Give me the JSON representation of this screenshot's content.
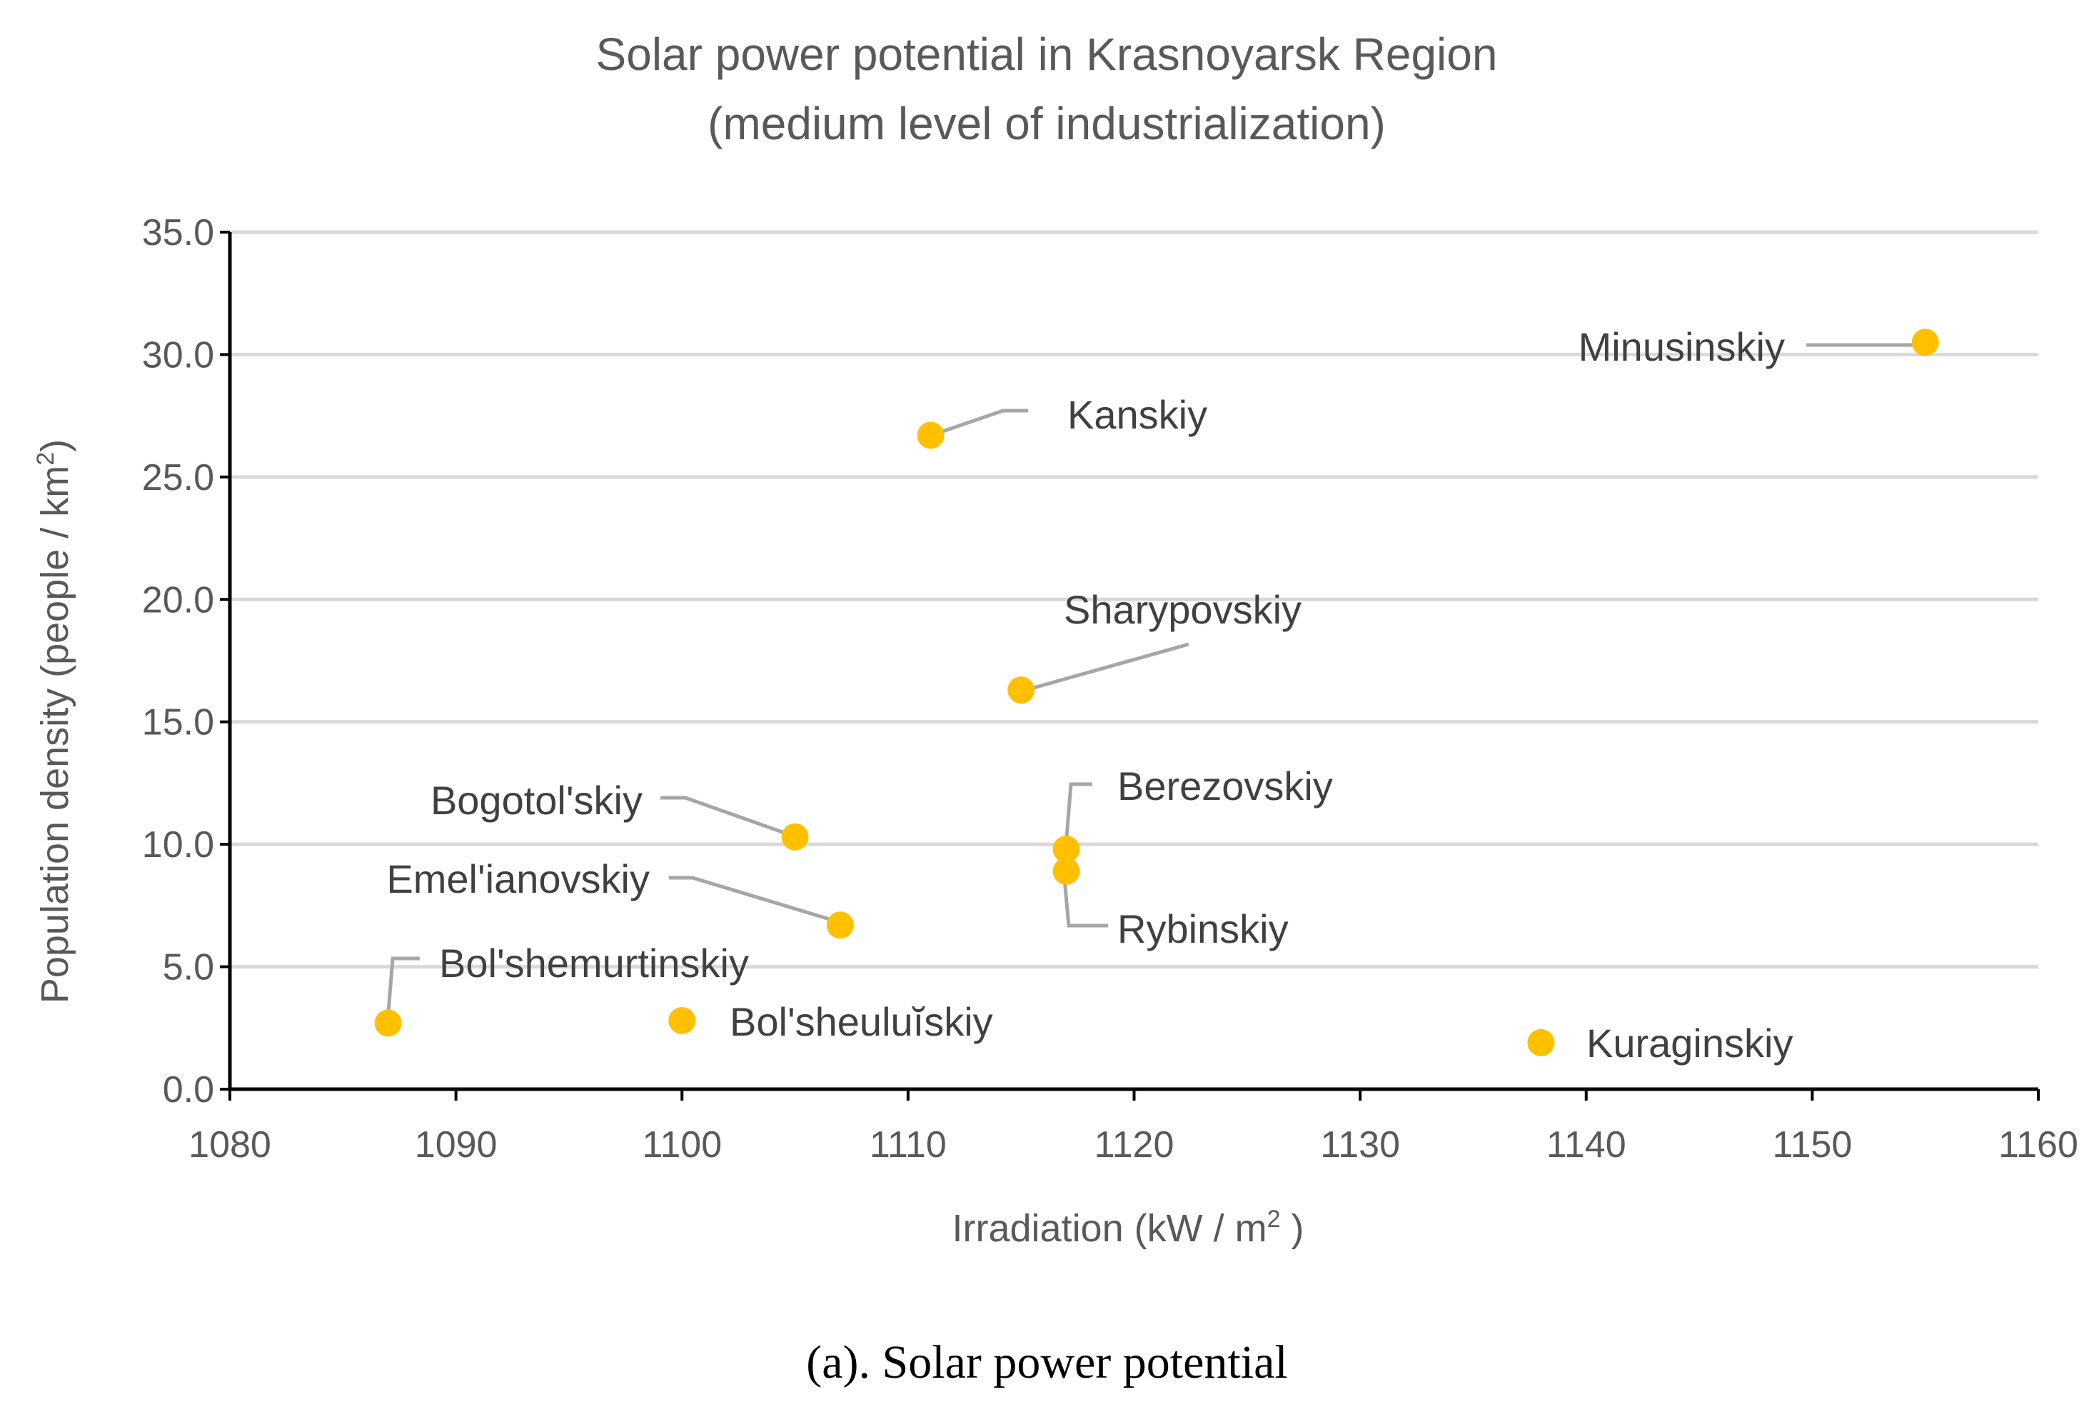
{
  "chart_data": {
    "type": "scatter",
    "title_line1": "Solar power potential in Krasnoyarsk Region",
    "title_line2": "(medium level of industrialization)",
    "xlabel": "Irradiation (kW / m",
    "xlabel_sup": "2",
    "xlabel_end": " )",
    "ylabel": "Population density (people / km",
    "ylabel_sup": "2",
    "ylabel_end": ")",
    "xlim": [
      1080,
      1160
    ],
    "ylim": [
      0,
      35
    ],
    "x_ticks": [
      1080,
      1090,
      1100,
      1110,
      1120,
      1130,
      1140,
      1150,
      1160
    ],
    "y_ticks": [
      "0.0",
      "5.0",
      "10.0",
      "15.0",
      "20.0",
      "25.0",
      "30.0",
      "35.0"
    ],
    "grid": true,
    "marker_color": "#FFC000",
    "leader_color": "#A6A6A6",
    "points": [
      {
        "name": "Minusinskiy",
        "x": 1155,
        "y": 30.5
      },
      {
        "name": "Kanskiy",
        "x": 1111,
        "y": 26.7
      },
      {
        "name": "Sharypovskiy",
        "x": 1115,
        "y": 16.3
      },
      {
        "name": "Bogotol'skiy",
        "x": 1105,
        "y": 10.3
      },
      {
        "name": "Berezovskiy",
        "x": 1117,
        "y": 9.8
      },
      {
        "name": "Rybinskiy",
        "x": 1117,
        "y": 8.9
      },
      {
        "name": "Emel'ianovskiy",
        "x": 1107,
        "y": 6.7
      },
      {
        "name": "Bol'shemurtinskiy",
        "x": 1087,
        "y": 2.7
      },
      {
        "name": "Bol'sheuluĭskiy",
        "x": 1100,
        "y": 2.8
      },
      {
        "name": "Kuraginskiy",
        "x": 1138,
        "y": 1.9
      }
    ]
  },
  "caption": "(a). Solar power potential"
}
